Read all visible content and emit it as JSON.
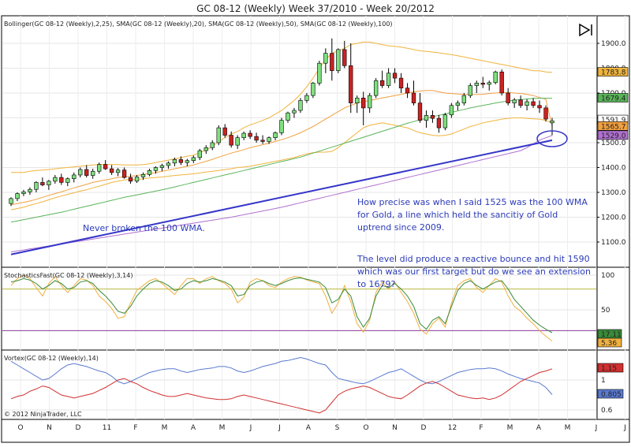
{
  "title": "GC 08-12 (Weekly)  Week 37/2010 - Week 20/2012",
  "copyright": "© 2012 NinjaTrader, LLC",
  "colors": {
    "up_candle": "#7fe07f",
    "down_candle": "#cc2222",
    "bollinger": "#f0b43c",
    "sma20": "#f0a040",
    "sma50": "#5ab45a",
    "sma100": "#b070d0",
    "trendline": "#3535c8",
    "stoch_k": "#3a8a3a",
    "stoch_d": "#f0b040",
    "vortex_plus": "#5a7ad0",
    "vortex_minus": "#d03030",
    "annotation": "#2b3bb8"
  },
  "price_panel": {
    "indicator_label": "Bollinger(GC 08-12 (Weekly),2,25), SMA(GC 08-12 (Weekly),20), SMA(GC 08-12 (Weekly),50), SMA(GC 08-12 (Weekly),100)",
    "y_ticks": [
      "1900.0",
      "1800.0",
      "1700.0",
      "1600.0",
      "1500.0",
      "1400.0",
      "1300.0",
      "1200.0",
      "1100.0"
    ],
    "price_labels": [
      {
        "text": "1783.8",
        "value": 1783.8,
        "color": "#f0b43c"
      },
      {
        "text": "1679.4",
        "value": 1679.4,
        "color": "#5ab45a"
      },
      {
        "text": "1591.9",
        "value": 1591.9,
        "color": "#ffffff"
      },
      {
        "text": "1565.7",
        "value": 1565.7,
        "color": "#f0a040"
      },
      {
        "text": "1529.0",
        "value": 1529.0,
        "color": "#b070d0"
      }
    ],
    "annotations": [
      {
        "lines": [
          "Never broken the 100 WMA."
        ]
      },
      {
        "lines": [
          "How precise was when I said 1525 was the 100 WMA",
          "for Gold, a line which held the sancitiy of Gold",
          "uptrend since 2009."
        ]
      },
      {
        "lines": [
          "The level did produce a reactive bounce and hit 1590",
          "which was our first target but do we see an extension",
          "to 1679?"
        ]
      }
    ]
  },
  "stoch_panel": {
    "label": "StochasticsFast(GC 08-12 (Weekly),3,14)",
    "y_ticks": [
      "100",
      "50"
    ],
    "value_labels": [
      {
        "text": "17.11",
        "color": "#3a8a3a"
      },
      {
        "text": "5.36",
        "color": "#f0b040"
      }
    ]
  },
  "vortex_panel": {
    "label": "Vortex(GC 08-12 (Weekly),14)",
    "y_ticks": [
      "1",
      "0.6"
    ],
    "value_labels": [
      {
        "text": "1.15",
        "color": "#d03030"
      },
      {
        "text": "0.805",
        "color": "#5a7ad0"
      }
    ]
  },
  "x_axis": {
    "labels": [
      "O",
      "N",
      "D",
      "11",
      "F",
      "M",
      "A",
      "M",
      "J",
      "J",
      "A",
      "S",
      "O",
      "N",
      "D",
      "12",
      "F",
      "M",
      "A",
      "M",
      "J",
      "J"
    ]
  },
  "chart_data": {
    "type": "candlestick",
    "title": "GC 08-12 (Weekly)  Week 37/2010 - Week 20/2012",
    "ylim": [
      1040,
      1960
    ],
    "ohlc": [
      [
        1255,
        1280,
        1245,
        1275
      ],
      [
        1275,
        1300,
        1265,
        1295
      ],
      [
        1295,
        1310,
        1285,
        1302
      ],
      [
        1302,
        1320,
        1290,
        1312
      ],
      [
        1312,
        1345,
        1300,
        1340
      ],
      [
        1340,
        1360,
        1325,
        1330
      ],
      [
        1330,
        1350,
        1310,
        1345
      ],
      [
        1345,
        1370,
        1335,
        1360
      ],
      [
        1360,
        1375,
        1330,
        1340
      ],
      [
        1340,
        1360,
        1325,
        1355
      ],
      [
        1355,
        1380,
        1340,
        1370
      ],
      [
        1370,
        1400,
        1360,
        1392
      ],
      [
        1392,
        1410,
        1360,
        1368
      ],
      [
        1368,
        1395,
        1355,
        1385
      ],
      [
        1385,
        1420,
        1375,
        1412
      ],
      [
        1412,
        1430,
        1390,
        1395
      ],
      [
        1395,
        1410,
        1370,
        1380
      ],
      [
        1380,
        1398,
        1365,
        1390
      ],
      [
        1390,
        1400,
        1355,
        1360
      ],
      [
        1360,
        1375,
        1335,
        1345
      ],
      [
        1345,
        1370,
        1338,
        1362
      ],
      [
        1362,
        1380,
        1350,
        1372
      ],
      [
        1372,
        1395,
        1365,
        1388
      ],
      [
        1388,
        1405,
        1375,
        1400
      ],
      [
        1400,
        1415,
        1385,
        1408
      ],
      [
        1408,
        1425,
        1395,
        1418
      ],
      [
        1418,
        1440,
        1405,
        1432
      ],
      [
        1432,
        1445,
        1410,
        1420
      ],
      [
        1420,
        1435,
        1405,
        1428
      ],
      [
        1428,
        1448,
        1418,
        1440
      ],
      [
        1440,
        1475,
        1430,
        1468
      ],
      [
        1468,
        1490,
        1455,
        1480
      ],
      [
        1480,
        1510,
        1470,
        1500
      ],
      [
        1500,
        1570,
        1490,
        1560
      ],
      [
        1560,
        1575,
        1520,
        1530
      ],
      [
        1530,
        1545,
        1480,
        1490
      ],
      [
        1490,
        1530,
        1475,
        1520
      ],
      [
        1520,
        1545,
        1510,
        1538
      ],
      [
        1538,
        1550,
        1515,
        1525
      ],
      [
        1525,
        1540,
        1500,
        1510
      ],
      [
        1510,
        1530,
        1495,
        1505
      ],
      [
        1505,
        1525,
        1495,
        1520
      ],
      [
        1520,
        1545,
        1510,
        1540
      ],
      [
        1540,
        1600,
        1530,
        1590
      ],
      [
        1590,
        1625,
        1580,
        1620
      ],
      [
        1620,
        1640,
        1600,
        1630
      ],
      [
        1630,
        1680,
        1620,
        1670
      ],
      [
        1670,
        1700,
        1660,
        1690
      ],
      [
        1690,
        1745,
        1680,
        1740
      ],
      [
        1740,
        1830,
        1730,
        1820
      ],
      [
        1820,
        1880,
        1780,
        1860
      ],
      [
        1860,
        1920,
        1750,
        1790
      ],
      [
        1790,
        1880,
        1780,
        1875
      ],
      [
        1875,
        1910,
        1800,
        1810
      ],
      [
        1810,
        1900,
        1620,
        1660
      ],
      [
        1660,
        1690,
        1620,
        1680
      ],
      [
        1680,
        1705,
        1570,
        1640
      ],
      [
        1640,
        1700,
        1620,
        1690
      ],
      [
        1690,
        1760,
        1680,
        1750
      ],
      [
        1750,
        1790,
        1720,
        1730
      ],
      [
        1730,
        1800,
        1720,
        1780
      ],
      [
        1780,
        1800,
        1740,
        1760
      ],
      [
        1760,
        1780,
        1700,
        1720
      ],
      [
        1720,
        1740,
        1680,
        1700
      ],
      [
        1700,
        1750,
        1650,
        1660
      ],
      [
        1660,
        1700,
        1580,
        1590
      ],
      [
        1590,
        1630,
        1560,
        1610
      ],
      [
        1610,
        1630,
        1580,
        1598
      ],
      [
        1598,
        1612,
        1540,
        1560
      ],
      [
        1560,
        1620,
        1550,
        1612
      ],
      [
        1612,
        1660,
        1600,
        1650
      ],
      [
        1650,
        1670,
        1630,
        1660
      ],
      [
        1660,
        1700,
        1650,
        1690
      ],
      [
        1690,
        1740,
        1680,
        1730
      ],
      [
        1730,
        1750,
        1700,
        1740
      ],
      [
        1740,
        1765,
        1720,
        1735
      ],
      [
        1735,
        1750,
        1710,
        1742
      ],
      [
        1742,
        1790,
        1735,
        1785
      ],
      [
        1785,
        1795,
        1690,
        1700
      ],
      [
        1700,
        1720,
        1650,
        1660
      ],
      [
        1660,
        1680,
        1640,
        1672
      ],
      [
        1672,
        1690,
        1640,
        1650
      ],
      [
        1650,
        1675,
        1630,
        1665
      ],
      [
        1665,
        1680,
        1640,
        1650
      ],
      [
        1650,
        1670,
        1620,
        1640
      ],
      [
        1640,
        1650,
        1585,
        1595
      ],
      [
        1580,
        1600,
        1530,
        1588
      ]
    ],
    "bollinger_upper": [
      1380,
      1380,
      1380,
      1385,
      1388,
      1390,
      1392,
      1395,
      1398,
      1400,
      1403,
      1405,
      1408,
      1410,
      1412,
      1413,
      1412,
      1412,
      1410,
      1410,
      1410,
      1412,
      1415,
      1420,
      1425,
      1430,
      1435,
      1440,
      1445,
      1450,
      1460,
      1470,
      1485,
      1505,
      1520,
      1535,
      1545,
      1560,
      1572,
      1580,
      1590,
      1600,
      1615,
      1630,
      1650,
      1670,
      1695,
      1725,
      1760,
      1800,
      1835,
      1860,
      1870,
      1880,
      1895,
      1900,
      1905,
      1905,
      1900,
      1895,
      1890,
      1888,
      1885,
      1880,
      1875,
      1870,
      1868,
      1865,
      1862,
      1858,
      1855,
      1850,
      1845,
      1840,
      1835,
      1830,
      1825,
      1820,
      1815,
      1810,
      1805,
      1800,
      1795,
      1790,
      1790,
      1785,
      1783
    ],
    "bollinger_lower": [
      1230,
      1235,
      1240,
      1248,
      1255,
      1262,
      1270,
      1278,
      1285,
      1292,
      1298,
      1305,
      1310,
      1318,
      1325,
      1332,
      1340,
      1345,
      1350,
      1352,
      1352,
      1355,
      1358,
      1360,
      1362,
      1365,
      1368,
      1370,
      1372,
      1375,
      1378,
      1382,
      1385,
      1388,
      1392,
      1395,
      1400,
      1402,
      1405,
      1410,
      1415,
      1420,
      1425,
      1430,
      1435,
      1440,
      1448,
      1455,
      1460,
      1462,
      1462,
      1465,
      1480,
      1500,
      1520,
      1540,
      1560,
      1570,
      1575,
      1580,
      1575,
      1570,
      1565,
      1560,
      1550,
      1540,
      1535,
      1530,
      1528,
      1530,
      1535,
      1545,
      1555,
      1565,
      1572,
      1580,
      1585,
      1590,
      1595,
      1598,
      1600,
      1600,
      1598,
      1596,
      1595,
      1590,
      1580
    ],
    "sma20": [
      1250,
      1255,
      1260,
      1265,
      1272,
      1280,
      1288,
      1295,
      1302,
      1310,
      1318,
      1325,
      1332,
      1340,
      1345,
      1350,
      1355,
      1360,
      1362,
      1365,
      1368,
      1372,
      1376,
      1380,
      1385,
      1390,
      1395,
      1400,
      1405,
      1410,
      1418,
      1425,
      1433,
      1442,
      1450,
      1458,
      1465,
      1472,
      1480,
      1486,
      1492,
      1498,
      1505,
      1512,
      1520,
      1530,
      1540,
      1552,
      1565,
      1580,
      1595,
      1610,
      1625,
      1640,
      1650,
      1660,
      1665,
      1670,
      1675,
      1680,
      1685,
      1690,
      1695,
      1700,
      1705,
      1708,
      1710,
      1710,
      1705,
      1700,
      1698,
      1696,
      1695,
      1694,
      1694,
      1695,
      1698,
      1700,
      1702,
      1702,
      1700,
      1698,
      1695,
      1690,
      1682,
      1675,
      1566
    ],
    "sma50": [
      1180,
      1185,
      1190,
      1195,
      1200,
      1205,
      1210,
      1215,
      1220,
      1226,
      1232,
      1238,
      1244,
      1250,
      1256,
      1262,
      1268,
      1274,
      1280,
      1285,
      1290,
      1295,
      1300,
      1305,
      1310,
      1316,
      1322,
      1328,
      1334,
      1340,
      1346,
      1352,
      1358,
      1364,
      1370,
      1376,
      1382,
      1388,
      1394,
      1400,
      1406,
      1412,
      1418,
      1424,
      1430,
      1436,
      1442,
      1450,
      1458,
      1466,
      1474,
      1482,
      1490,
      1498,
      1506,
      1514,
      1522,
      1530,
      1538,
      1546,
      1554,
      1562,
      1570,
      1578,
      1585,
      1592,
      1598,
      1604,
      1610,
      1616,
      1622,
      1628,
      1634,
      1640,
      1645,
      1650,
      1655,
      1660,
      1664,
      1668,
      1671,
      1674,
      1676,
      1678,
      1679,
      1679,
      1679
    ],
    "sma100": [
      1060,
      1064,
      1068,
      1072,
      1076,
      1080,
      1084,
      1088,
      1092,
      1096,
      1100,
      1104,
      1108,
      1112,
      1116,
      1120,
      1124,
      1128,
      1132,
      1136,
      1140,
      1144,
      1148,
      1152,
      1156,
      1160,
      1164,
      1168,
      1172,
      1176,
      1180,
      1184,
      1188,
      1192,
      1196,
      1200,
      1205,
      1210,
      1215,
      1220,
      1225,
      1230,
      1235,
      1240,
      1246,
      1252,
      1258,
      1264,
      1270,
      1276,
      1282,
      1288,
      1294,
      1300,
      1306,
      1312,
      1318,
      1324,
      1330,
      1336,
      1342,
      1348,
      1354,
      1360,
      1366,
      1372,
      1378,
      1384,
      1390,
      1396,
      1402,
      1408,
      1414,
      1420,
      1426,
      1432,
      1438,
      1444,
      1450,
      1456,
      1462,
      1468,
      1480,
      1495,
      1510,
      1520,
      1529
    ],
    "trendline": {
      "from": [
        0,
        1050
      ],
      "to": [
        86,
        1510
      ]
    },
    "stoch_k": [
      90,
      92,
      95,
      93,
      88,
      80,
      85,
      92,
      88,
      80,
      82,
      90,
      92,
      88,
      78,
      70,
      60,
      48,
      45,
      55,
      70,
      80,
      88,
      92,
      90,
      85,
      78,
      80,
      88,
      92,
      90,
      92,
      95,
      93,
      90,
      85,
      70,
      72,
      85,
      90,
      92,
      88,
      85,
      88,
      92,
      95,
      96,
      94,
      92,
      90,
      82,
      60,
      65,
      80,
      70,
      40,
      25,
      38,
      70,
      85,
      82,
      88,
      80,
      70,
      55,
      30,
      22,
      35,
      40,
      30,
      55,
      78,
      88,
      92,
      85,
      80,
      85,
      90,
      92,
      80,
      65,
      55,
      45,
      35,
      28,
      22,
      17
    ],
    "stoch_d": [
      85,
      95,
      100,
      95,
      82,
      70,
      88,
      98,
      85,
      75,
      85,
      95,
      93,
      85,
      70,
      62,
      52,
      38,
      40,
      60,
      78,
      85,
      92,
      95,
      88,
      80,
      72,
      85,
      95,
      95,
      88,
      95,
      98,
      92,
      88,
      80,
      60,
      68,
      90,
      95,
      92,
      85,
      82,
      90,
      95,
      98,
      97,
      93,
      90,
      88,
      70,
      45,
      60,
      85,
      62,
      30,
      18,
      35,
      75,
      90,
      80,
      90,
      75,
      62,
      45,
      22,
      15,
      30,
      38,
      25,
      60,
      85,
      92,
      95,
      82,
      75,
      85,
      95,
      90,
      70,
      55,
      48,
      38,
      30,
      20,
      12,
      5
    ],
    "vortex_plus": [
      1.25,
      1.2,
      1.15,
      1.1,
      1.05,
      1.0,
      1.02,
      1.08,
      1.15,
      1.2,
      1.22,
      1.2,
      1.18,
      1.15,
      1.12,
      1.1,
      1.05,
      0.98,
      0.95,
      0.98,
      1.02,
      1.06,
      1.1,
      1.12,
      1.14,
      1.15,
      1.15,
      1.12,
      1.1,
      1.12,
      1.14,
      1.15,
      1.16,
      1.18,
      1.18,
      1.16,
      1.12,
      1.1,
      1.12,
      1.15,
      1.18,
      1.2,
      1.22,
      1.25,
      1.26,
      1.28,
      1.3,
      1.28,
      1.25,
      1.22,
      1.2,
      1.1,
      1.02,
      1.0,
      0.98,
      0.96,
      0.95,
      0.98,
      1.02,
      1.06,
      1.1,
      1.12,
      1.15,
      1.1,
      1.05,
      1.0,
      0.96,
      0.95,
      0.98,
      1.02,
      1.06,
      1.1,
      1.12,
      1.14,
      1.15,
      1.15,
      1.16,
      1.15,
      1.12,
      1.08,
      1.05,
      1.02,
      1.0,
      0.98,
      0.96,
      0.9,
      0.805
    ],
    "vortex_minus": [
      0.75,
      0.78,
      0.8,
      0.85,
      0.88,
      0.92,
      0.9,
      0.85,
      0.8,
      0.78,
      0.76,
      0.78,
      0.8,
      0.82,
      0.86,
      0.9,
      0.95,
      1.0,
      1.02,
      0.98,
      0.95,
      0.9,
      0.86,
      0.83,
      0.8,
      0.78,
      0.78,
      0.8,
      0.82,
      0.8,
      0.78,
      0.76,
      0.75,
      0.74,
      0.74,
      0.75,
      0.78,
      0.8,
      0.78,
      0.76,
      0.74,
      0.72,
      0.7,
      0.68,
      0.66,
      0.64,
      0.62,
      0.6,
      0.58,
      0.56,
      0.6,
      0.7,
      0.8,
      0.85,
      0.88,
      0.9,
      0.92,
      0.9,
      0.86,
      0.82,
      0.78,
      0.76,
      0.75,
      0.8,
      0.86,
      0.92,
      0.96,
      0.98,
      0.95,
      0.9,
      0.85,
      0.8,
      0.78,
      0.76,
      0.75,
      0.76,
      0.74,
      0.76,
      0.8,
      0.86,
      0.92,
      0.98,
      1.02,
      1.06,
      1.1,
      1.12,
      1.15
    ]
  }
}
